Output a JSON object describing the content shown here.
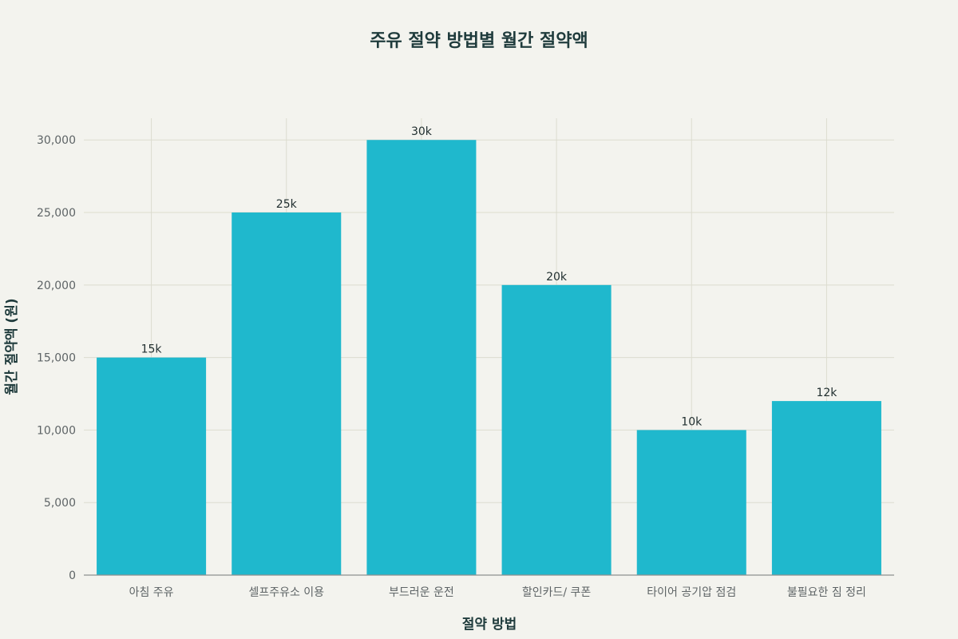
{
  "chart_data": {
    "type": "bar",
    "title": "주유 절약 방법별 월간 절약액",
    "xlabel": "절약 방법",
    "ylabel": "월간 절약액 (원)",
    "categories": [
      "아침 주유",
      "셀프주유소 이용",
      "부드러운 운전",
      "할인카드/ 쿠폰",
      "타이어 공기압 점검",
      "불필요한 짐 정리"
    ],
    "values": [
      15000,
      25000,
      30000,
      20000,
      10000,
      12000
    ],
    "data_labels": [
      "15k",
      "25k",
      "30k",
      "20k",
      "10k",
      "12k"
    ],
    "ylim": [
      0,
      31500
    ],
    "yticks": [
      0,
      5000,
      10000,
      15000,
      20000,
      25000,
      30000
    ],
    "ytick_labels": [
      "0",
      "5,000",
      "10,000",
      "15,000",
      "20,000",
      "25,000",
      "30,000"
    ],
    "grid": true,
    "legend": "none",
    "bar_color": "#1fb8cd"
  }
}
